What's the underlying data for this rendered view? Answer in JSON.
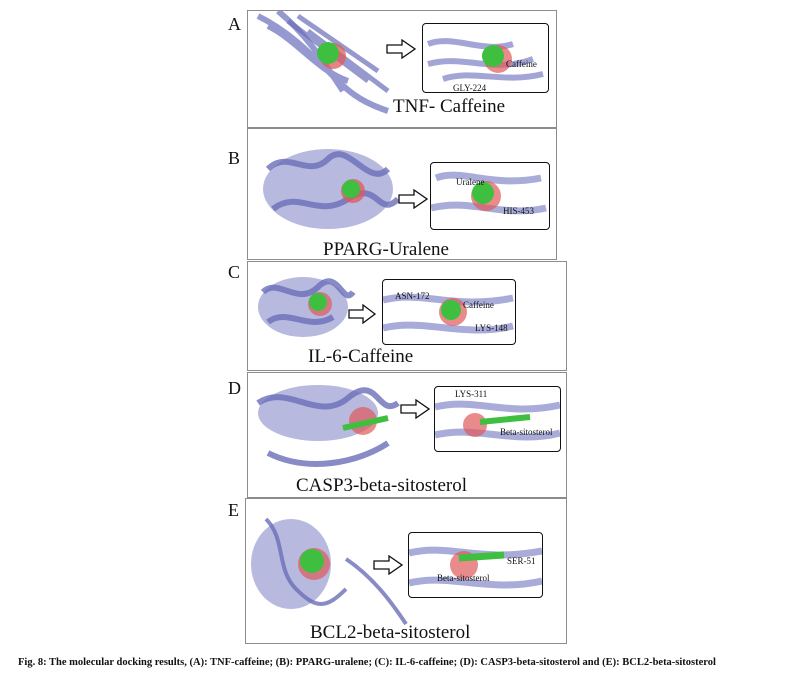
{
  "panels": [
    {
      "letter": "A",
      "title": "TNF- Caffeine",
      "residues": [
        "Caffeine",
        "GLY-224"
      ]
    },
    {
      "letter": "B",
      "title": "PPARG-Uralene",
      "residues": [
        "Uralene",
        "HIS-453"
      ]
    },
    {
      "letter": "C",
      "title": "IL-6-Caffeine",
      "residues": [
        "ASN-172",
        "Caffeine",
        "LYS-148"
      ]
    },
    {
      "letter": "D",
      "title": "CASP3-beta-sitosterol",
      "residues": [
        "LYS-311",
        "Beta-sitosterol"
      ]
    },
    {
      "letter": "E",
      "title": "BCL2-beta-sitosterol",
      "residues": [
        "SER-51",
        "Beta-sitosterol"
      ]
    }
  ],
  "caption": "Fig. 8: The molecular docking results, (A): TNF-caffeine; (B): PPARG-uralene; (C): IL-6-caffeine; (D): CASP3-beta-sitosterol and (E): BCL2-beta-sitosterol",
  "colors": {
    "protein": "#7b7fc4",
    "ligand": "#3fbf3f",
    "oxygen": "#e05a5a",
    "frame": "#8c8c8c"
  }
}
